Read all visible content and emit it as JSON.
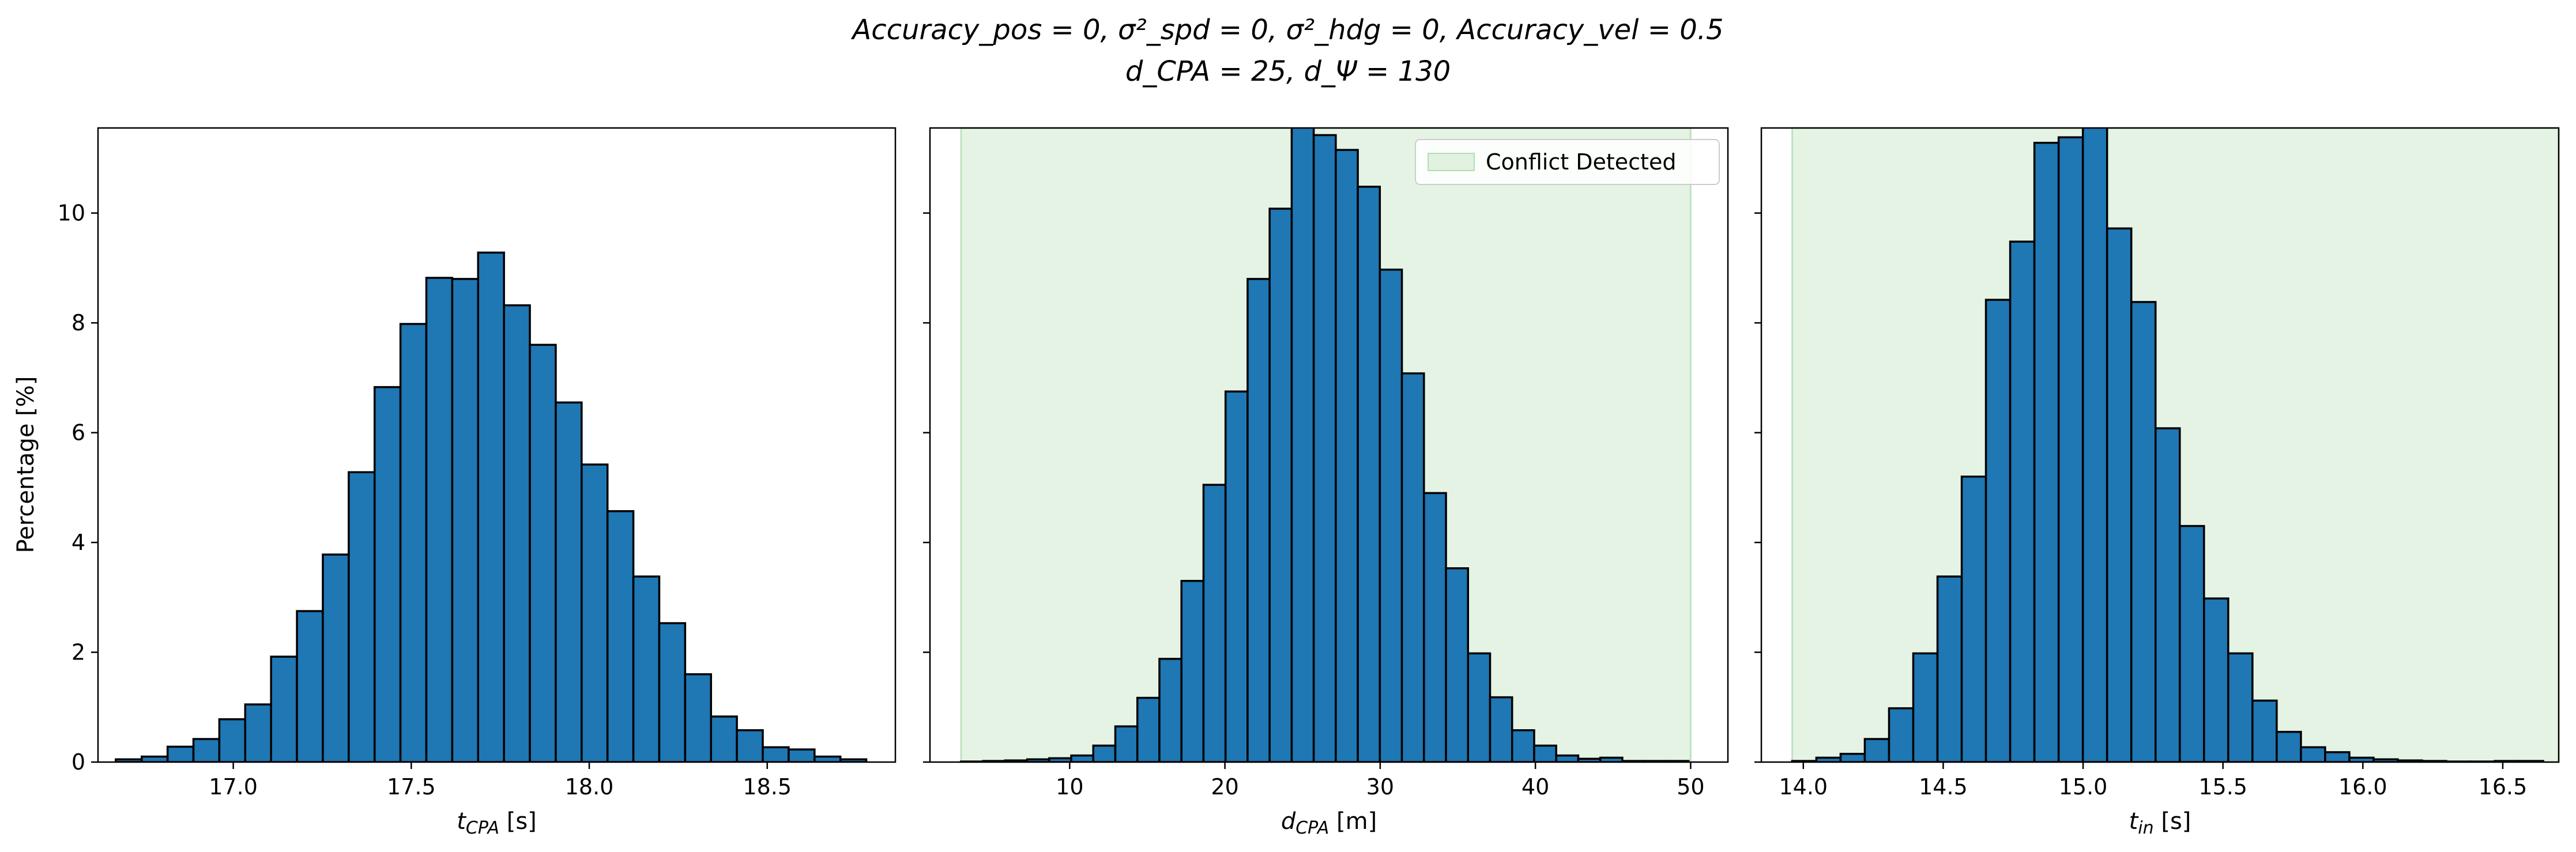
{
  "figure": {
    "title_line1": "Accuracy_pos = 0, σ²_spd = 0, σ²_hdg = 0, Accuracy_vel = 0.5",
    "title_line2": "d_CPA = 25, d_Ψ = 130",
    "bar_color": "#1f77b4",
    "edge_color": "#000000",
    "shade_color": "#2ca02c",
    "shade_alpha": 0.12,
    "y_label": "Percentage [%]",
    "y_ticks": [
      "0",
      "2",
      "4",
      "6",
      "8",
      "10"
    ]
  },
  "chart_data": [
    {
      "type": "bar",
      "xlabel": "t_CPA [s]",
      "ylabel": "Percentage [%]",
      "xlim": [
        16.62,
        18.86
      ],
      "ylim": [
        0,
        11.55
      ],
      "x_ticks": [
        "17.0",
        "17.5",
        "18.0",
        "18.5"
      ],
      "bin_start": 16.67,
      "bin_width": 0.0727,
      "values": [
        0.05,
        0.1,
        0.28,
        0.42,
        0.78,
        1.05,
        1.92,
        2.75,
        3.78,
        5.28,
        6.83,
        7.98,
        8.82,
        8.8,
        9.28,
        8.32,
        7.6,
        6.55,
        5.42,
        4.57,
        3.38,
        2.53,
        1.6,
        0.83,
        0.58,
        0.27,
        0.23,
        0.1,
        0.05
      ],
      "legend": null
    },
    {
      "type": "bar",
      "xlabel": "d_CPA [m]",
      "ylabel": "",
      "xlim": [
        1.0,
        52.4
      ],
      "ylim": [
        0,
        11.55
      ],
      "x_ticks": [
        "10",
        "20",
        "30",
        "40",
        "50"
      ],
      "bin_start": 3.0,
      "bin_width": 1.42,
      "values": [
        0.01,
        0.02,
        0.03,
        0.05,
        0.07,
        0.12,
        0.3,
        0.65,
        1.17,
        1.88,
        3.3,
        5.05,
        6.75,
        8.8,
        10.08,
        11.6,
        11.42,
        11.15,
        10.48,
        8.97,
        7.08,
        4.9,
        3.53,
        1.98,
        1.18,
        0.58,
        0.3,
        0.12,
        0.06,
        0.08,
        0.02,
        0.02,
        0.02
      ],
      "shaded_region": [
        3.0,
        50.0
      ],
      "legend": {
        "label": "Conflict Detected",
        "position": "upper right"
      }
    },
    {
      "type": "bar",
      "xlabel": "t_in [s]",
      "ylabel": "",
      "xlim": [
        13.85,
        16.7
      ],
      "ylim": [
        0,
        11.55
      ],
      "x_ticks": [
        "14.0",
        "14.5",
        "15.0",
        "15.5",
        "16.0",
        "16.5"
      ],
      "bin_start": 13.96,
      "bin_width": 0.0866,
      "values": [
        0.02,
        0.08,
        0.15,
        0.42,
        0.98,
        1.98,
        3.38,
        5.2,
        8.42,
        9.48,
        11.28,
        11.38,
        11.75,
        9.72,
        8.38,
        6.08,
        4.3,
        2.98,
        1.98,
        1.12,
        0.55,
        0.27,
        0.18,
        0.08,
        0.05,
        0.03,
        0.02,
        0.01,
        0.01,
        0.02,
        0.02
      ],
      "shaded_region": [
        13.96,
        16.7
      ],
      "legend": null
    }
  ]
}
